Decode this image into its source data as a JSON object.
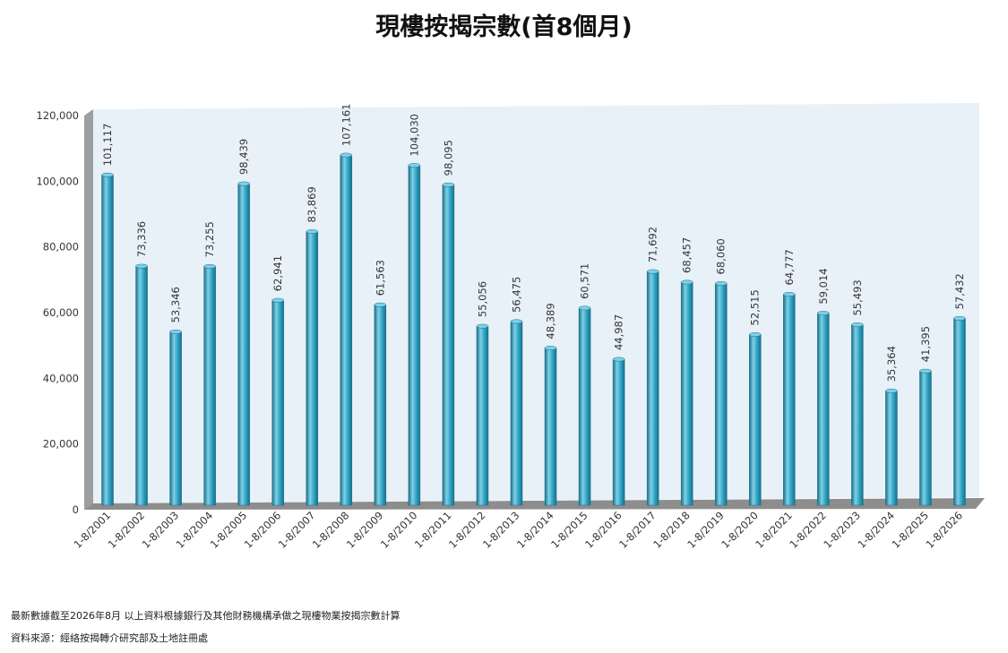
{
  "chart_data": {
    "type": "bar",
    "title": "現樓按揭宗數(首8個月)",
    "categories": [
      "1-8/2001",
      "1-8/2002",
      "1-8/2003",
      "1-8/2004",
      "1-8/2005",
      "1-8/2006",
      "1-8/2007",
      "1-8/2008",
      "1-8/2009",
      "1-8/2010",
      "1-8/2011",
      "1-8/2012",
      "1-8/2013",
      "1-8/2014",
      "1-8/2015",
      "1-8/2016",
      "1-8/2017",
      "1-8/2018",
      "1-8/2019",
      "1-8/2020",
      "1-8/2021",
      "1-8/2022",
      "1-8/2023",
      "1-8/2024",
      "1-8/2025",
      "1-8/2026"
    ],
    "values": [
      101117,
      73336,
      53346,
      73255,
      98439,
      62941,
      83869,
      107161,
      61563,
      104030,
      98095,
      55056,
      56475,
      48389,
      60571,
      44987,
      71692,
      68457,
      68060,
      52515,
      64777,
      59014,
      55493,
      35364,
      41395,
      57432
    ],
    "value_labels": [
      "101,117",
      "73,336",
      "53,346",
      "73,255",
      "98,439",
      "62,941",
      "83,869",
      "107,161",
      "61,563",
      "104,030",
      "98,095",
      "55,056",
      "56,475",
      "48,389",
      "60,571",
      "44,987",
      "71,692",
      "68,457",
      "68,060",
      "52,515",
      "64,777",
      "59,014",
      "55,493",
      "35,364",
      "41,395",
      "57,432"
    ],
    "ylim": [
      0,
      120000
    ],
    "yticks": [
      0,
      20000,
      40000,
      60000,
      80000,
      100000,
      120000
    ],
    "ytick_labels": [
      "0",
      "20,000",
      "40,000",
      "60,000",
      "80,000",
      "100,000",
      "120,000"
    ],
    "xlabel": "",
    "ylabel": "",
    "grid": false,
    "legend": "none",
    "colors": {
      "bar": "#2a9fc0",
      "bar_light": "#7fd0e6",
      "bar_dark": "#1a6f88",
      "plot_bg": "#e8f1f8",
      "wall": "#9e9e9e",
      "floor": "#8d8d8d"
    }
  },
  "footnotes": {
    "line1": "最新數據截至2026年8月    以上資料根據銀行及其他財務機構承做之現樓物業按揭宗數計算",
    "line2": "資料來源：經絡按揭轉介研究部及土地註冊處"
  }
}
